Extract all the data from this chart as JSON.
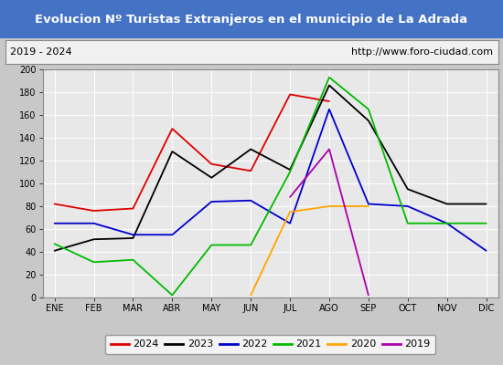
{
  "title": "Evolucion Nº Turistas Extranjeros en el municipio de La Adrada",
  "subtitle_left": "2019 - 2024",
  "subtitle_right": "http://www.foro-ciudad.com",
  "title_bg_color": "#4472c4",
  "title_text_color": "#ffffff",
  "subtitle_bg_color": "#f0f0f0",
  "plot_bg_color": "#e8e8e8",
  "months": [
    "ENE",
    "FEB",
    "MAR",
    "ABR",
    "MAY",
    "JUN",
    "JUL",
    "AGO",
    "SEP",
    "OCT",
    "NOV",
    "DIC"
  ],
  "series": {
    "2024": {
      "color": "#dd0000",
      "data": [
        82,
        76,
        78,
        148,
        117,
        111,
        178,
        172,
        null,
        null,
        null,
        null
      ]
    },
    "2023": {
      "color": "#000000",
      "data": [
        41,
        51,
        52,
        128,
        105,
        130,
        112,
        186,
        155,
        95,
        82,
        82
      ]
    },
    "2022": {
      "color": "#0000cc",
      "data": [
        65,
        65,
        55,
        55,
        84,
        85,
        65,
        165,
        82,
        80,
        65,
        41
      ]
    },
    "2021": {
      "color": "#00bb00",
      "data": [
        47,
        31,
        33,
        2,
        46,
        46,
        110,
        193,
        165,
        65,
        65,
        65
      ]
    },
    "2020": {
      "color": "#ffa500",
      "data": [
        null,
        null,
        null,
        null,
        null,
        2,
        75,
        80,
        80,
        null,
        null,
        null
      ]
    },
    "2019": {
      "color": "#aa00aa",
      "data": [
        null,
        null,
        null,
        null,
        null,
        null,
        88,
        130,
        2,
        null,
        null,
        null
      ]
    }
  },
  "ylim": [
    0,
    200
  ],
  "yticks": [
    0,
    20,
    40,
    60,
    80,
    100,
    120,
    140,
    160,
    180,
    200
  ],
  "legend_order": [
    "2024",
    "2023",
    "2022",
    "2021",
    "2020",
    "2019"
  ],
  "border_color": "#aaaaaa",
  "fig_bg_color": "#c8c8c8"
}
